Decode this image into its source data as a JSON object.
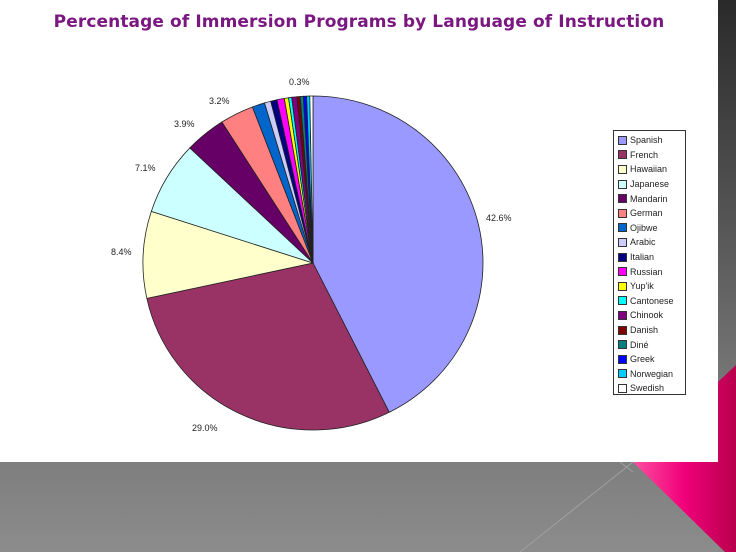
{
  "slide": {
    "background_accent": "#e8006e"
  },
  "chart_data": {
    "type": "pie",
    "title": "Percentage of Immersion Programs by Language of Instruction",
    "categories": [
      "Spanish",
      "French",
      "Hawaiian",
      "Japanese",
      "Mandarin",
      "German",
      "Ojibwe",
      "Arabic",
      "Italian",
      "Russian",
      "Yup'ik",
      "Cantonese",
      "Chinook",
      "Danish",
      "Diné",
      "Greek",
      "Norwegian",
      "Swedish"
    ],
    "values": [
      42.6,
      29.0,
      8.4,
      7.1,
      3.9,
      3.2,
      1.2,
      0.6,
      0.6,
      0.7,
      0.4,
      0.3,
      0.5,
      0.3,
      0.3,
      0.3,
      0.3,
      0.3
    ],
    "colors": [
      "#9999ff",
      "#993366",
      "#ffffcc",
      "#ccffff",
      "#660066",
      "#ff8080",
      "#0066cc",
      "#ccccff",
      "#000080",
      "#ff00ff",
      "#ffff00",
      "#00ffff",
      "#800080",
      "#800000",
      "#008080",
      "#0000ff",
      "#00ccff",
      "#ffffff"
    ],
    "data_labels": [
      {
        "category": "Spanish",
        "text": "42.6%"
      },
      {
        "category": "French",
        "text": "29.0%"
      },
      {
        "category": "Hawaiian",
        "text": "8.4%"
      },
      {
        "category": "Japanese",
        "text": "7.1%"
      },
      {
        "category": "Mandarin",
        "text": "3.9%"
      },
      {
        "category": "German",
        "text": "3.2%"
      },
      {
        "category": "Swedish",
        "text": "0.3%"
      }
    ],
    "legend_position": "right",
    "start_angle": "12 o'clock",
    "direction": "clockwise"
  }
}
